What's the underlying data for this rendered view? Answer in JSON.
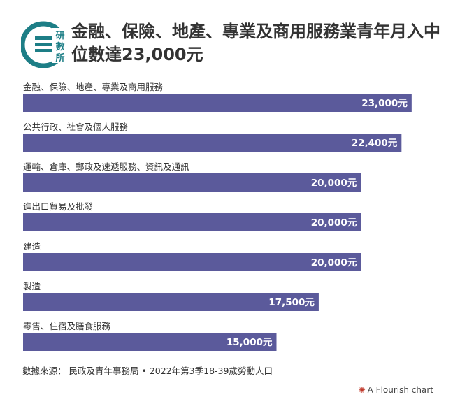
{
  "header": {
    "title": "金融、保險、地產、專業及商用服務業青年月入中位數達23,000元",
    "logo_text": "研數所"
  },
  "chart_data": {
    "type": "bar",
    "orientation": "horizontal",
    "categories": [
      "金融、保險、地產、專業及商用服務",
      "公共行政、社會及個人服務",
      "運輸、倉庫、郵政及速遞服務、資訊及通訊",
      "進出口貿易及批發",
      "建造",
      "製造",
      "零售、住宿及膳食服務"
    ],
    "values": [
      23000,
      22400,
      20000,
      20000,
      20000,
      17500,
      15000
    ],
    "value_labels": [
      "23,000元",
      "22,400元",
      "20,000元",
      "20,000元",
      "20,000元",
      "17,500元",
      "15,000元"
    ],
    "xlim": [
      0,
      24000
    ],
    "bar_color": "#5b5a9b",
    "grid": false,
    "title": "金融、保險、地產、專業及商用服務業青年月入中位數達23,000元"
  },
  "footer": {
    "source_label": "數據來源：",
    "source_text": "民政及青年事務局",
    "source_detail": "2022年第3季18-39歲勞動人口",
    "credit": "A Flourish chart"
  }
}
